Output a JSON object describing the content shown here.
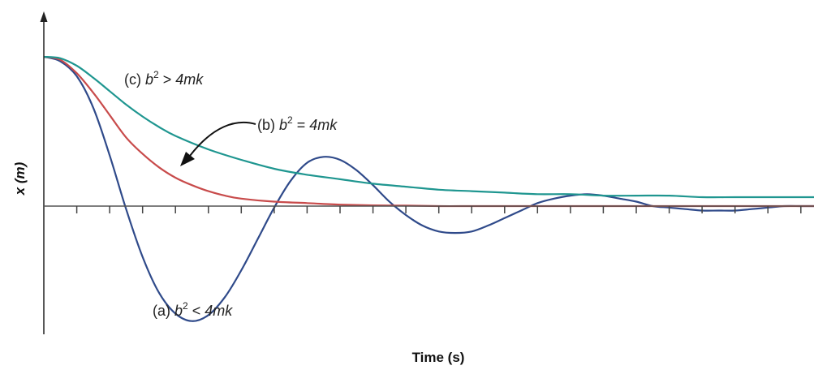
{
  "chart_data": {
    "type": "line",
    "title": "",
    "xlabel": "Time (s)",
    "ylabel": "x (m)",
    "xlim": [
      0,
      23.4
    ],
    "ylim": [
      -1.03,
      1.02
    ],
    "x_ticks_count": 23,
    "grid": false,
    "legend": "none",
    "series": [
      {
        "label": "(a) b² < 4mk",
        "label_parts": {
          "prefix": "(a) ",
          "var": "b",
          "exp": "2",
          "op": " < ",
          "rhs": "4mk"
        },
        "color": "#2f4a8a",
        "x": [
          0,
          0.5,
          1,
          1.5,
          2,
          2.5,
          3,
          3.5,
          4,
          4.5,
          5,
          5.5,
          6,
          6.5,
          7,
          7.5,
          8,
          8.5,
          9,
          9.5,
          10,
          10.5,
          11,
          11.5,
          12,
          12.5,
          13,
          13.5,
          14,
          14.5,
          15,
          15.5,
          16,
          16.5,
          17,
          17.5,
          18,
          18.5,
          19,
          19.5,
          20,
          20.5,
          21,
          21.5,
          22,
          22.5,
          23,
          23.4
        ],
        "y": [
          1.0,
          0.97,
          0.87,
          0.66,
          0.34,
          -0.02,
          -0.34,
          -0.58,
          -0.72,
          -0.77,
          -0.73,
          -0.61,
          -0.43,
          -0.22,
          -0.01,
          0.17,
          0.29,
          0.33,
          0.31,
          0.24,
          0.14,
          0.03,
          -0.06,
          -0.13,
          -0.17,
          -0.18,
          -0.17,
          -0.13,
          -0.08,
          -0.03,
          0.02,
          0.05,
          0.07,
          0.08,
          0.07,
          0.05,
          0.03,
          0.0,
          -0.01,
          -0.02,
          -0.03,
          -0.03,
          -0.03,
          -0.02,
          -0.01,
          0.0,
          0.0,
          0.0
        ]
      },
      {
        "label": "(b) b² = 4mk",
        "label_parts": {
          "prefix": "(b) ",
          "var": "b",
          "exp": "2",
          "op": " = ",
          "rhs": "4mk"
        },
        "color": "#c84b4b",
        "x": [
          0,
          0.5,
          1,
          1.5,
          2,
          2.5,
          3,
          3.5,
          4,
          4.5,
          5,
          5.5,
          6,
          7,
          8,
          9,
          10,
          11,
          12,
          13,
          14,
          15,
          16,
          18,
          20,
          22,
          23.4
        ],
        "y": [
          1.0,
          0.98,
          0.89,
          0.76,
          0.61,
          0.46,
          0.35,
          0.26,
          0.19,
          0.14,
          0.1,
          0.07,
          0.05,
          0.03,
          0.02,
          0.01,
          0.005,
          0.003,
          0.0,
          0.0,
          0.0,
          0.0,
          0.0,
          0.0,
          0.0,
          0.0,
          0.0
        ]
      },
      {
        "label": "(c) b² > 4mk",
        "label_parts": {
          "prefix": "(c) ",
          "var": "b",
          "exp": "2",
          "op": " > ",
          "rhs": "4mk"
        },
        "color": "#1f9690",
        "x": [
          0,
          0.5,
          1,
          1.5,
          2,
          2.5,
          3,
          3.5,
          4,
          5,
          6,
          7,
          8,
          9,
          10,
          11,
          12,
          13,
          14,
          15,
          16,
          17,
          18,
          19,
          20,
          21,
          22,
          23.4
        ],
        "y": [
          1.0,
          0.99,
          0.94,
          0.86,
          0.77,
          0.68,
          0.6,
          0.53,
          0.47,
          0.38,
          0.31,
          0.25,
          0.21,
          0.18,
          0.15,
          0.13,
          0.11,
          0.1,
          0.09,
          0.08,
          0.08,
          0.07,
          0.07,
          0.07,
          0.06,
          0.06,
          0.06,
          0.06
        ]
      }
    ]
  }
}
